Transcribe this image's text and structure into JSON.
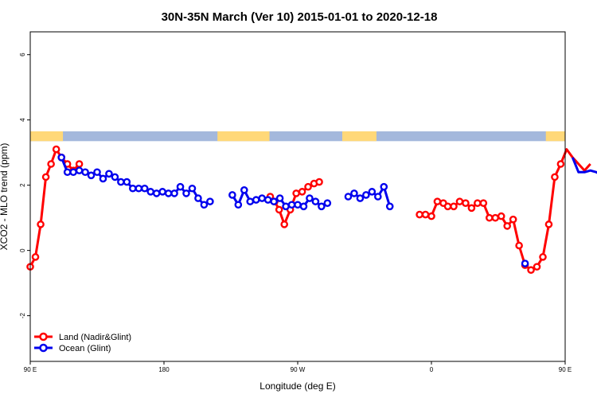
{
  "chart_data": {
    "type": "line",
    "title": "30N-35N March (Ver 10)   2015-01-01 to 2020-12-18",
    "xlabel": "Longitude (deg E)",
    "ylabel": "XCO2 - MLO trend (ppm)",
    "xlim": [
      90,
      450
    ],
    "ylim": [
      -3.4,
      6.7
    ],
    "x_ticks": [
      {
        "value": 90,
        "label": "90 E"
      },
      {
        "value": 180,
        "label": "180"
      },
      {
        "value": 270,
        "label": "90 W"
      },
      {
        "value": 360,
        "label": "0"
      },
      {
        "value": 450,
        "label": "90 E"
      },
      {
        "value": 540,
        "label": "180"
      }
    ],
    "y_ticks": [
      {
        "value": -2,
        "label": "-2"
      },
      {
        "value": 0,
        "label": "0"
      },
      {
        "value": 2,
        "label": "2"
      },
      {
        "value": 4,
        "label": "4"
      },
      {
        "value": 6,
        "label": "6"
      }
    ],
    "grid": false,
    "legend_position": "bottom-left",
    "land_ocean_strip": {
      "y_range": [
        3.35,
        3.65
      ],
      "land_color": "#FFD878",
      "ocean_color": "#A4B8DC",
      "land_segments": [
        [
          90,
          112
        ],
        [
          216,
          251
        ],
        [
          300,
          323
        ],
        [
          437,
          485
        ],
        [
          496,
          508
        ]
      ]
    },
    "series": [
      {
        "name": "Land (Nadir&Glint)",
        "color": "#FF0000",
        "points": [
          [
            90,
            -0.5
          ],
          [
            93.5,
            -0.2
          ],
          [
            97,
            0.8
          ],
          [
            100.5,
            2.25
          ],
          [
            104,
            2.65
          ],
          [
            107.5,
            3.1
          ],
          [
            111,
            2.85
          ],
          [
            115,
            2.65
          ],
          [
            119,
            2.45
          ],
          [
            123,
            2.65
          ],
          [
            251.5,
            1.65
          ],
          [
            254.5,
            1.5
          ],
          [
            257.5,
            1.25
          ],
          [
            261,
            0.8
          ],
          [
            265,
            1.25
          ],
          [
            269,
            1.75
          ],
          [
            273,
            1.8
          ],
          [
            277,
            1.95
          ],
          [
            281,
            2.05
          ],
          [
            284.5,
            2.1
          ],
          [
            352,
            1.1
          ],
          [
            356,
            1.1
          ],
          [
            360,
            1.05
          ],
          [
            364,
            1.5
          ],
          [
            368,
            1.45
          ],
          [
            371,
            1.35
          ],
          [
            375,
            1.35
          ],
          [
            379,
            1.5
          ],
          [
            383,
            1.45
          ],
          [
            387,
            1.3
          ],
          [
            391,
            1.45
          ],
          [
            395,
            1.45
          ],
          [
            399,
            1.0
          ],
          [
            403,
            1.0
          ],
          [
            407,
            1.05
          ],
          [
            411,
            0.75
          ],
          [
            415,
            0.95
          ],
          [
            419,
            0.15
          ],
          [
            423,
            -0.45
          ],
          [
            427,
            -0.6
          ],
          [
            431,
            -0.5
          ],
          [
            435,
            -0.2
          ],
          [
            439,
            0.8
          ],
          [
            443,
            2.25
          ],
          [
            447,
            2.65
          ],
          [
            451,
            3.1
          ],
          [
            455,
            2.85
          ],
          [
            459,
            2.65
          ],
          [
            463,
            2.45
          ],
          [
            467,
            2.65
          ]
        ]
      },
      {
        "name": "Ocean (Glint)",
        "color": "#0000EE",
        "points": [
          [
            111,
            2.85
          ],
          [
            115,
            2.4
          ],
          [
            119,
            2.4
          ],
          [
            123,
            2.45
          ],
          [
            127,
            2.4
          ],
          [
            131,
            2.3
          ],
          [
            135,
            2.4
          ],
          [
            139,
            2.2
          ],
          [
            143,
            2.35
          ],
          [
            147,
            2.25
          ],
          [
            151,
            2.1
          ],
          [
            155,
            2.1
          ],
          [
            159,
            1.9
          ],
          [
            163,
            1.9
          ],
          [
            167,
            1.9
          ],
          [
            171,
            1.8
          ],
          [
            175,
            1.75
          ],
          [
            179,
            1.8
          ],
          [
            183,
            1.75
          ],
          [
            187,
            1.75
          ],
          [
            191,
            1.95
          ],
          [
            195,
            1.75
          ],
          [
            199,
            1.9
          ],
          [
            203,
            1.6
          ],
          [
            207,
            1.4
          ],
          [
            211,
            1.5
          ],
          [
            226,
            1.7
          ],
          [
            230,
            1.4
          ],
          [
            234,
            1.85
          ],
          [
            238,
            1.5
          ],
          [
            242,
            1.55
          ],
          [
            246,
            1.6
          ],
          [
            250,
            1.55
          ],
          [
            254,
            1.5
          ],
          [
            258,
            1.6
          ],
          [
            262,
            1.35
          ],
          [
            266,
            1.4
          ],
          [
            270,
            1.4
          ],
          [
            274,
            1.35
          ],
          [
            278,
            1.6
          ],
          [
            282,
            1.5
          ],
          [
            286,
            1.35
          ],
          [
            290,
            1.45
          ],
          [
            304,
            1.65
          ],
          [
            308,
            1.75
          ],
          [
            312,
            1.6
          ],
          [
            316,
            1.7
          ],
          [
            320,
            1.8
          ],
          [
            324,
            1.65
          ],
          [
            328,
            1.95
          ],
          [
            332,
            1.35
          ],
          [
            423,
            -0.4
          ],
          [
            455,
            2.85
          ],
          [
            459,
            2.4
          ],
          [
            463,
            2.4
          ],
          [
            467,
            2.45
          ],
          [
            471,
            2.4
          ],
          [
            475,
            2.3
          ],
          [
            479,
            2.4
          ],
          [
            483,
            2.2
          ],
          [
            487,
            2.35
          ],
          [
            491,
            2.25
          ],
          [
            495,
            2.1
          ],
          [
            499,
            2.1
          ]
        ]
      }
    ]
  }
}
